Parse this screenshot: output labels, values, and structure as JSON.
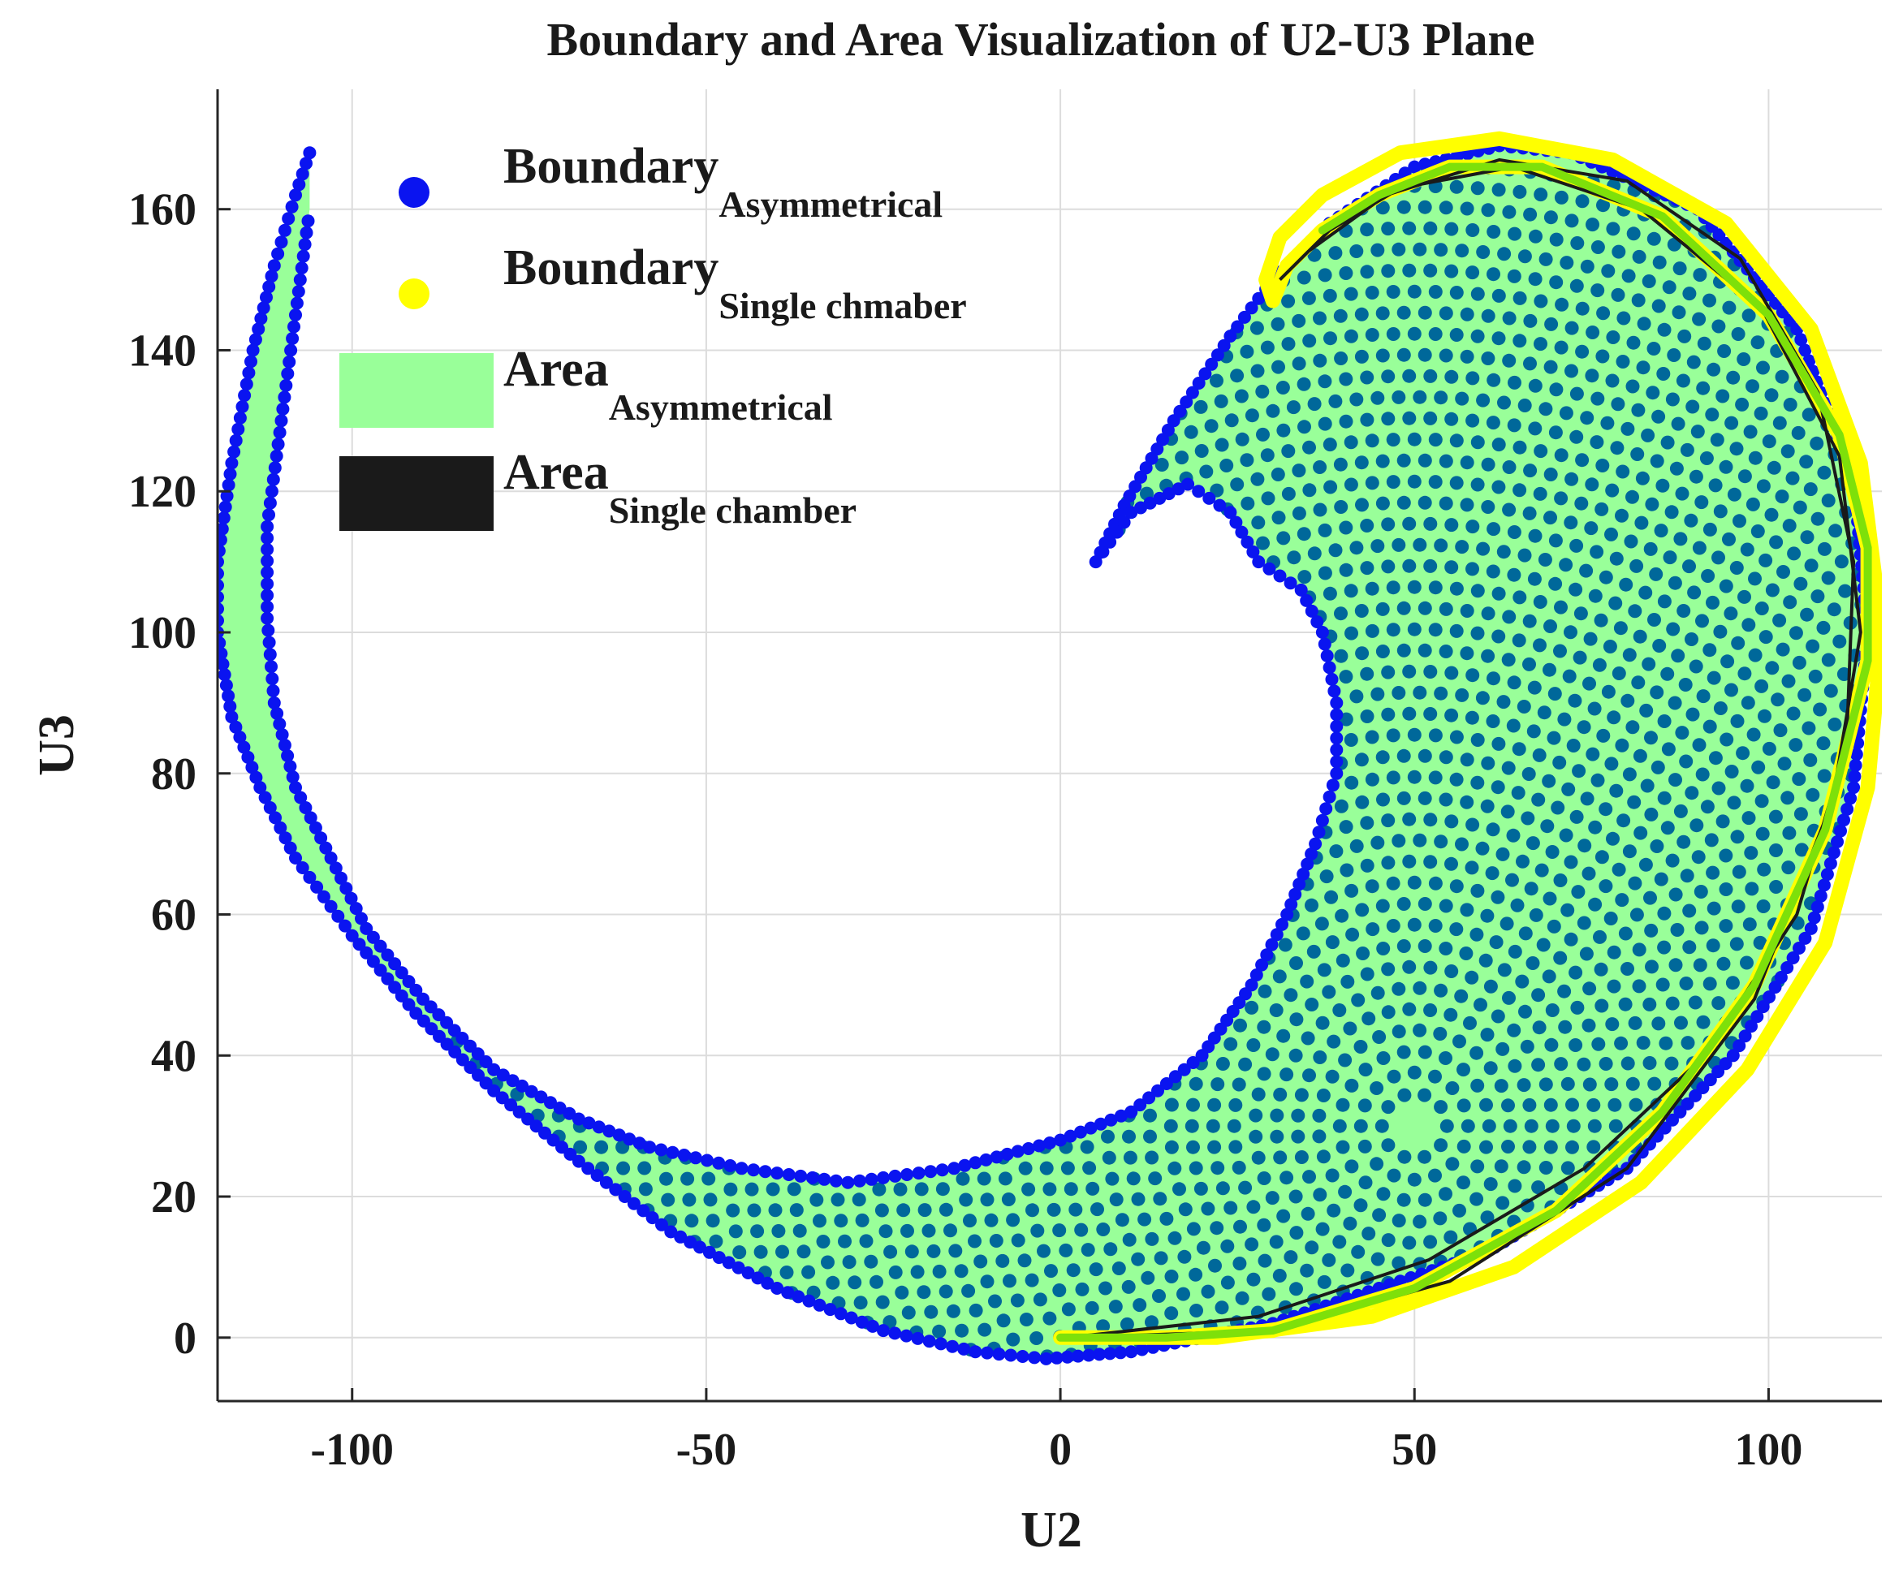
{
  "chart_data": {
    "type": "scatter",
    "title": "Boundary and Area Visualization of U2-U3 Plane",
    "xlabel": "U2",
    "ylabel": "U3",
    "xlim": [
      -119,
      116
    ],
    "ylim": [
      -9,
      177
    ],
    "xticks": [
      -100,
      -50,
      0,
      50,
      100
    ],
    "yticks": [
      0,
      20,
      40,
      60,
      80,
      100,
      120,
      140,
      160
    ],
    "xtick_labels": [
      "-100",
      "-50",
      "0",
      "50",
      "100"
    ],
    "ytick_labels": [
      "0",
      "20",
      "40",
      "60",
      "80",
      "100",
      "120",
      "140",
      "160"
    ],
    "grid": true,
    "legend_position": "top-left",
    "legend": [
      {
        "base": "Boundary",
        "sub": "Asymmetrical",
        "kind": "marker",
        "color": "#0a14f0"
      },
      {
        "base": "Boundary",
        "sub": "Single chmaber",
        "kind": "marker",
        "color": "#ffff00"
      },
      {
        "base": "Area",
        "sub": "Asymmetrical",
        "kind": "patch",
        "color": "#99ff99"
      },
      {
        "base": "Area",
        "sub": "Single chamber",
        "kind": "patch",
        "color": "#1a1a1a"
      }
    ],
    "series": [
      {
        "role": "boundary-asymmetrical",
        "color": "#0a14f0",
        "points": [
          [
            -106,
            168
          ],
          [
            -108,
            162
          ],
          [
            -111,
            152
          ],
          [
            -114,
            140
          ],
          [
            -117,
            124
          ],
          [
            -119,
            110
          ],
          [
            -119,
            100
          ],
          [
            -117,
            88
          ],
          [
            -113,
            78
          ],
          [
            -108,
            68
          ],
          [
            -100,
            57
          ],
          [
            -91,
            46
          ],
          [
            -80,
            35
          ],
          [
            -68,
            25
          ],
          [
            -55,
            15
          ],
          [
            -40,
            7
          ],
          [
            -25,
            1
          ],
          [
            -12,
            -2
          ],
          [
            -2,
            -3
          ],
          [
            10,
            -2
          ],
          [
            30,
            2
          ],
          [
            60,
            12
          ],
          [
            80,
            24
          ],
          [
            95,
            40
          ],
          [
            106,
            58
          ],
          [
            112,
            78
          ],
          [
            114,
            100
          ],
          [
            112,
            122
          ],
          [
            104,
            143
          ],
          [
            90,
            160
          ],
          [
            72,
            168
          ],
          [
            62,
            169
          ],
          [
            50,
            166
          ],
          [
            38,
            158
          ],
          [
            30,
            150
          ],
          [
            24,
            142
          ],
          [
            16,
            130
          ],
          [
            9,
            118
          ],
          [
            5,
            110
          ],
          [
            10,
            117
          ],
          [
            18,
            121
          ],
          [
            24,
            117
          ],
          [
            28,
            110
          ],
          [
            34,
            106
          ],
          [
            37,
            100
          ],
          [
            39,
            90
          ],
          [
            39,
            80
          ],
          [
            36,
            70
          ],
          [
            32,
            60
          ],
          [
            27,
            50
          ],
          [
            20,
            40
          ],
          [
            10,
            32
          ],
          [
            0,
            28
          ],
          [
            -15,
            24
          ],
          [
            -30,
            22
          ],
          [
            -45,
            24
          ],
          [
            -58,
            27
          ],
          [
            -68,
            31
          ],
          [
            -80,
            38
          ],
          [
            -90,
            48
          ],
          [
            -98,
            58
          ],
          [
            -103,
            68
          ],
          [
            -108,
            78
          ],
          [
            -111,
            90
          ],
          [
            -112,
            102
          ],
          [
            -112,
            115
          ],
          [
            -110,
            130
          ],
          [
            -108,
            145
          ],
          [
            -106,
            160
          ]
        ]
      },
      {
        "role": "boundary-single-chamber",
        "color": "#ffff00",
        "points": [
          [
            0,
            0
          ],
          [
            15,
            0
          ],
          [
            30,
            1
          ],
          [
            50,
            7
          ],
          [
            70,
            18
          ],
          [
            85,
            32
          ],
          [
            98,
            50
          ],
          [
            108,
            72
          ],
          [
            114,
            96
          ],
          [
            114,
            112
          ],
          [
            110,
            128
          ],
          [
            100,
            145
          ],
          [
            85,
            159
          ],
          [
            68,
            166
          ],
          [
            55,
            166
          ],
          [
            45,
            162
          ],
          [
            37,
            157
          ],
          [
            32,
            152
          ],
          [
            30,
            147
          ],
          [
            29,
            150
          ],
          [
            31,
            156
          ],
          [
            37,
            162
          ],
          [
            48,
            168
          ],
          [
            62,
            170
          ],
          [
            78,
            167
          ],
          [
            94,
            158
          ],
          [
            106,
            143
          ],
          [
            113,
            124
          ],
          [
            116,
            100
          ],
          [
            114,
            78
          ],
          [
            108,
            56
          ],
          [
            97,
            38
          ],
          [
            82,
            22
          ],
          [
            64,
            10
          ],
          [
            44,
            3
          ],
          [
            22,
            0
          ],
          [
            0,
            0
          ]
        ]
      },
      {
        "role": "area-single-chamber-outline",
        "color": "#1a1a1a",
        "points": [
          [
            1,
            0
          ],
          [
            30,
            1
          ],
          [
            55,
            8
          ],
          [
            80,
            24
          ],
          [
            98,
            48
          ],
          [
            109,
            76
          ],
          [
            113,
            100
          ],
          [
            110,
            125
          ],
          [
            99,
            146
          ],
          [
            82,
            160
          ],
          [
            64,
            166
          ],
          [
            48,
            163
          ],
          [
            38,
            157
          ],
          [
            31,
            150
          ],
          [
            35,
            154
          ],
          [
            46,
            162
          ],
          [
            62,
            167
          ],
          [
            80,
            164
          ],
          [
            96,
            153
          ],
          [
            107,
            134
          ],
          [
            112,
            110
          ],
          [
            111,
            84
          ],
          [
            104,
            60
          ],
          [
            91,
            40
          ],
          [
            74,
            24
          ],
          [
            52,
            11
          ],
          [
            28,
            3
          ],
          [
            1,
            0
          ]
        ]
      }
    ]
  }
}
